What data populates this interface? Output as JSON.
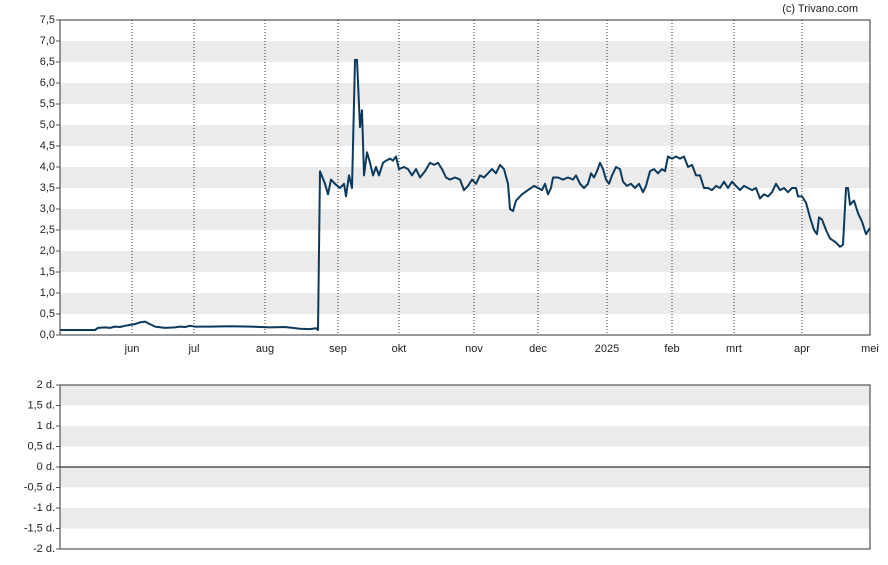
{
  "chart_data": [
    {
      "type": "line",
      "watermark": "(c) Trivano.com",
      "color": "#0d3a5c",
      "bands": true,
      "xgrid": true,
      "xlim": [
        0,
        810
      ],
      "ylim": [
        0,
        7.5
      ],
      "yticks": [
        {
          "value": 0,
          "label": "0,0"
        },
        {
          "value": 0.5,
          "label": "0,5"
        },
        {
          "value": 1,
          "label": "1,0"
        },
        {
          "value": 1.5,
          "label": "1,5"
        },
        {
          "value": 2,
          "label": "2,0"
        },
        {
          "value": 2.5,
          "label": "2,5"
        },
        {
          "value": 3,
          "label": "3,0"
        },
        {
          "value": 3.5,
          "label": "3,5"
        },
        {
          "value": 4,
          "label": "4,0"
        },
        {
          "value": 4.5,
          "label": "4,5"
        },
        {
          "value": 5,
          "label": "5,0"
        },
        {
          "value": 5.5,
          "label": "5,5"
        },
        {
          "value": 6,
          "label": "6,0"
        },
        {
          "value": 6.5,
          "label": "6,5"
        },
        {
          "value": 7,
          "label": "7,0"
        },
        {
          "value": 7.5,
          "label": "7,5"
        }
      ],
      "xticks": [
        {
          "value": 72,
          "label": "jun"
        },
        {
          "value": 134,
          "label": "jul"
        },
        {
          "value": 205,
          "label": "aug"
        },
        {
          "value": 278,
          "label": "sep"
        },
        {
          "value": 339,
          "label": "okt"
        },
        {
          "value": 414,
          "label": "nov"
        },
        {
          "value": 478,
          "label": "dec"
        },
        {
          "value": 547,
          "label": "2025"
        },
        {
          "value": 612,
          "label": "feb"
        },
        {
          "value": 674,
          "label": "mrt"
        },
        {
          "value": 742,
          "label": "apr"
        },
        {
          "value": 810,
          "label": "mei"
        }
      ],
      "x": [
        0,
        35,
        38,
        45,
        50,
        55,
        60,
        65,
        70,
        75,
        80,
        85,
        90,
        95,
        105,
        115,
        120,
        125,
        130,
        135,
        150,
        170,
        190,
        210,
        225,
        240,
        250,
        256,
        258,
        260,
        265,
        268,
        271,
        275,
        280,
        284,
        286,
        289,
        292,
        295,
        297,
        300,
        302,
        304,
        307,
        310,
        313,
        316,
        319,
        323,
        326,
        330,
        333,
        336,
        339,
        344,
        348,
        352,
        356,
        360,
        365,
        370,
        374,
        378,
        382,
        386,
        390,
        395,
        400,
        404,
        408,
        412,
        416,
        420,
        424,
        428,
        432,
        436,
        440,
        444,
        448,
        450,
        453,
        456,
        462,
        468,
        474,
        478,
        482,
        485,
        488,
        491,
        493,
        498,
        503,
        508,
        513,
        516,
        520,
        524,
        528,
        531,
        534,
        537,
        540,
        543,
        546,
        549,
        552,
        556,
        560,
        563,
        567,
        571,
        575,
        579,
        583,
        586,
        590,
        594,
        598,
        602,
        605,
        608,
        612,
        616,
        620,
        624,
        628,
        632,
        636,
        640,
        644,
        648,
        652,
        656,
        660,
        664,
        668,
        672,
        676,
        680,
        684,
        688,
        692,
        696,
        700,
        704,
        708,
        712,
        716,
        720,
        724,
        728,
        732,
        736,
        738,
        742,
        746,
        750,
        754,
        757,
        759,
        762,
        766,
        770,
        776,
        780,
        783,
        786,
        788,
        790,
        794,
        798,
        802,
        806,
        810
      ],
      "values": [
        0.12,
        0.12,
        0.17,
        0.18,
        0.17,
        0.2,
        0.19,
        0.22,
        0.24,
        0.26,
        0.3,
        0.32,
        0.26,
        0.2,
        0.17,
        0.18,
        0.2,
        0.19,
        0.22,
        0.2,
        0.2,
        0.21,
        0.2,
        0.18,
        0.19,
        0.15,
        0.14,
        0.16,
        0.12,
        3.9,
        3.6,
        3.35,
        3.7,
        3.6,
        3.5,
        3.6,
        3.3,
        3.8,
        3.5,
        6.55,
        6.55,
        4.95,
        5.35,
        3.8,
        4.35,
        4.1,
        3.8,
        4.0,
        3.8,
        4.1,
        4.15,
        4.2,
        4.15,
        4.25,
        3.95,
        4.0,
        3.95,
        3.8,
        3.95,
        3.75,
        3.9,
        4.1,
        4.05,
        4.1,
        3.95,
        3.75,
        3.7,
        3.75,
        3.7,
        3.45,
        3.55,
        3.7,
        3.6,
        3.8,
        3.75,
        3.85,
        3.95,
        3.85,
        4.05,
        3.95,
        3.6,
        3.0,
        2.95,
        3.2,
        3.35,
        3.45,
        3.55,
        3.5,
        3.45,
        3.6,
        3.35,
        3.5,
        3.75,
        3.75,
        3.7,
        3.75,
        3.7,
        3.8,
        3.6,
        3.5,
        3.6,
        3.85,
        3.75,
        3.9,
        4.1,
        3.95,
        3.7,
        3.6,
        3.8,
        4.0,
        3.95,
        3.65,
        3.55,
        3.6,
        3.5,
        3.6,
        3.4,
        3.55,
        3.9,
        3.95,
        3.85,
        3.95,
        3.9,
        4.25,
        4.2,
        4.25,
        4.2,
        4.25,
        4.0,
        4.05,
        3.8,
        3.8,
        3.5,
        3.5,
        3.45,
        3.55,
        3.5,
        3.65,
        3.5,
        3.65,
        3.55,
        3.45,
        3.55,
        3.5,
        3.45,
        3.5,
        3.25,
        3.35,
        3.3,
        3.4,
        3.6,
        3.45,
        3.5,
        3.4,
        3.5,
        3.5,
        3.3,
        3.3,
        3.15,
        2.8,
        2.5,
        2.4,
        2.8,
        2.75,
        2.5,
        2.3,
        2.2,
        2.1,
        2.15,
        3.5,
        3.5,
        3.1,
        3.2,
        2.9,
        2.7,
        2.4,
        2.55
      ]
    },
    {
      "type": "line",
      "bands": true,
      "ylim": [
        -2,
        2
      ],
      "yticks": [
        {
          "value": -2,
          "label": "-2 d."
        },
        {
          "value": -1.5,
          "label": "-1,5 d."
        },
        {
          "value": -1,
          "label": "-1 d."
        },
        {
          "value": -0.5,
          "label": "-0,5 d."
        },
        {
          "value": 0,
          "label": "0 d."
        },
        {
          "value": 0.5,
          "label": "0,5 d."
        },
        {
          "value": 1,
          "label": "1 d."
        },
        {
          "value": 1.5,
          "label": "1,5 d."
        },
        {
          "value": 2,
          "label": "2 d."
        }
      ]
    }
  ]
}
